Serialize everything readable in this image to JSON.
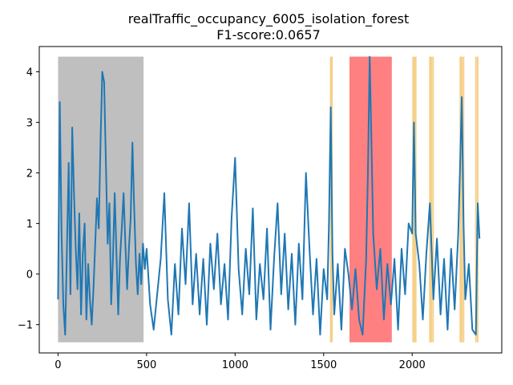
{
  "chart_data": {
    "type": "line",
    "title": "realTraffic_occupancy_6005_isolation_forest",
    "subtitle": "F1-score:0.0657",
    "xlabel": "",
    "ylabel": "",
    "xlim": [
      -106,
      2506
    ],
    "ylim": [
      -1.56,
      4.5
    ],
    "x_ticks": [
      0,
      500,
      1000,
      1500,
      2000
    ],
    "y_ticks": [
      -1,
      0,
      1,
      2,
      3,
      4
    ],
    "grid": false,
    "legend": "none",
    "band_ymin": -1.35,
    "band_ymax": 4.3,
    "shaded_regions": [
      {
        "kind": "train",
        "x_start": 0,
        "x_end": 483,
        "color": "#bfbfbf"
      },
      {
        "kind": "anomaly",
        "x_start": 1646,
        "x_end": 1885,
        "color": "#ff8080"
      }
    ],
    "detected_lines": {
      "color": "#f5d08a",
      "x": [
        1540,
        1547,
        2005,
        2012,
        2020,
        2100,
        2108,
        2118,
        2272,
        2280,
        2290,
        2360,
        2370
      ]
    },
    "series": [
      {
        "color": "#1f77b4",
        "x": [
          0,
          10,
          20,
          30,
          40,
          50,
          60,
          70,
          80,
          90,
          100,
          110,
          120,
          130,
          140,
          150,
          160,
          170,
          180,
          190,
          200,
          210,
          220,
          230,
          240,
          250,
          260,
          270,
          280,
          290,
          300,
          310,
          320,
          330,
          340,
          350,
          360,
          370,
          380,
          390,
          400,
          410,
          420,
          430,
          440,
          450,
          460,
          470,
          480,
          490,
          500,
          520,
          540,
          560,
          580,
          600,
          620,
          640,
          660,
          680,
          700,
          720,
          740,
          760,
          780,
          800,
          820,
          840,
          860,
          880,
          900,
          920,
          940,
          960,
          980,
          1000,
          1020,
          1040,
          1060,
          1080,
          1100,
          1120,
          1140,
          1160,
          1180,
          1200,
          1220,
          1240,
          1260,
          1280,
          1300,
          1320,
          1340,
          1360,
          1380,
          1400,
          1420,
          1440,
          1460,
          1480,
          1500,
          1520,
          1530,
          1540,
          1550,
          1560,
          1580,
          1600,
          1620,
          1640,
          1660,
          1680,
          1700,
          1720,
          1740,
          1750,
          1760,
          1770,
          1780,
          1800,
          1820,
          1840,
          1860,
          1880,
          1900,
          1920,
          1940,
          1960,
          1980,
          2000,
          2010,
          2020,
          2040,
          2060,
          2080,
          2100,
          2120,
          2140,
          2160,
          2180,
          2200,
          2220,
          2240,
          2260,
          2270,
          2280,
          2290,
          2300,
          2320,
          2340,
          2360,
          2370,
          2380
        ],
        "y": [
          -0.5,
          3.4,
          0.8,
          -0.6,
          -1.2,
          0.5,
          2.2,
          -0.4,
          2.9,
          1.6,
          0.5,
          -0.3,
          1.2,
          -0.8,
          0.4,
          1.0,
          -0.9,
          0.2,
          -0.5,
          -1.0,
          -0.3,
          0.6,
          1.5,
          0.9,
          2.6,
          4.0,
          3.8,
          2.2,
          0.6,
          1.4,
          -0.6,
          0.3,
          1.6,
          0.4,
          -0.8,
          0.3,
          0.9,
          1.6,
          0.6,
          -0.3,
          0.5,
          1.1,
          2.6,
          1.3,
          0.2,
          -0.4,
          0.4,
          -0.2,
          0.6,
          0.1,
          0.5,
          -0.6,
          -1.1,
          -0.4,
          0.3,
          1.6,
          -0.5,
          -1.2,
          0.2,
          -0.8,
          0.9,
          -0.2,
          1.4,
          -0.6,
          0.4,
          -0.8,
          0.3,
          -1.0,
          0.6,
          -0.3,
          0.8,
          -0.6,
          0.2,
          -0.9,
          1.1,
          2.3,
          0.1,
          -0.8,
          0.5,
          -0.4,
          1.3,
          -0.9,
          0.2,
          -0.5,
          0.9,
          -1.1,
          0.3,
          1.4,
          -0.4,
          0.8,
          -0.7,
          0.4,
          -1.0,
          0.6,
          -0.5,
          2.0,
          0.5,
          -0.8,
          0.3,
          -1.2,
          0.1,
          -0.5,
          1.0,
          3.3,
          0.4,
          -0.8,
          0.2,
          -1.1,
          0.5,
          0.0,
          -0.7,
          0.1,
          -0.9,
          -1.2,
          0.3,
          2.0,
          4.3,
          2.6,
          0.8,
          -0.3,
          0.5,
          -0.9,
          0.2,
          -0.6,
          0.3,
          -1.1,
          0.5,
          -0.4,
          1.0,
          0.8,
          3.0,
          0.8,
          0.2,
          -0.9,
          0.4,
          1.4,
          -0.5,
          0.7,
          -0.8,
          0.3,
          -1.1,
          0.5,
          -0.7,
          0.8,
          2.1,
          3.5,
          1.0,
          -0.5,
          0.2,
          -1.1,
          -1.2,
          1.4,
          0.7
        ]
      }
    ]
  }
}
